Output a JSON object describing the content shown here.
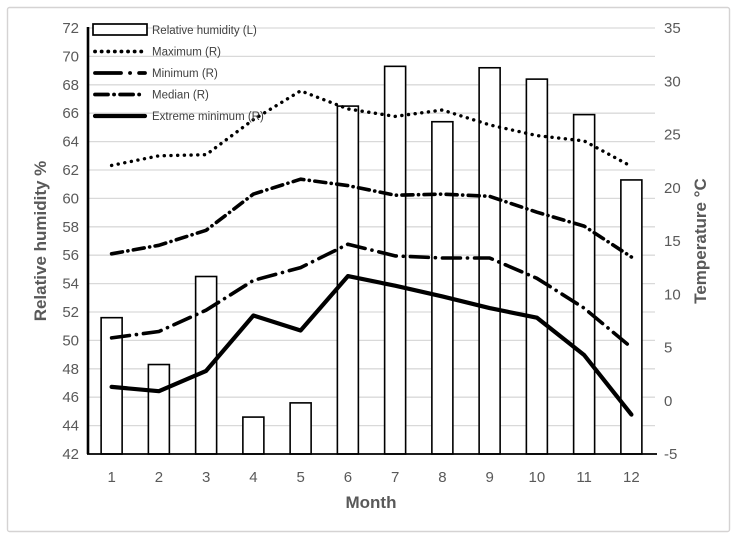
{
  "chart_data": {
    "type": "combo-bar-line",
    "title": "",
    "xlabel": "Month",
    "ylabel_left": "Relative humidity %",
    "ylabel_right": "Temperature °C",
    "categories": [
      "1",
      "2",
      "3",
      "4",
      "5",
      "6",
      "7",
      "8",
      "9",
      "10",
      "11",
      "12"
    ],
    "left_axis": {
      "min": 42,
      "max": 72,
      "step": 2,
      "ticks": [
        42,
        44,
        46,
        48,
        50,
        52,
        54,
        56,
        58,
        60,
        62,
        64,
        66,
        68,
        70,
        72
      ]
    },
    "right_axis": {
      "min": -5,
      "max": 35,
      "step": 5,
      "ticks": [
        -5,
        0,
        5,
        10,
        15,
        20,
        25,
        30,
        35
      ]
    },
    "grid": "horizontal",
    "legend_position": "top-left-inside",
    "series": [
      {
        "name": "Relative humidity (L)",
        "type": "bar",
        "axis": "left",
        "style": "bar-outline",
        "values": [
          51.6,
          48.3,
          54.5,
          44.6,
          45.6,
          66.5,
          69.3,
          65.4,
          69.2,
          68.4,
          65.9,
          61.3
        ]
      },
      {
        "name": "Maximum (R)",
        "type": "line",
        "axis": "right",
        "style": "dotted",
        "values": [
          22.1,
          23.0,
          23.1,
          26.4,
          29.1,
          27.4,
          26.7,
          27.3,
          25.9,
          24.9,
          24.4,
          22.0
        ]
      },
      {
        "name": "Minimum (R)",
        "type": "line",
        "axis": "right",
        "style": "long-dash-dot",
        "values": [
          5.9,
          6.5,
          8.5,
          11.3,
          12.5,
          14.7,
          13.6,
          13.4,
          13.4,
          11.5,
          8.7,
          5.0
        ]
      },
      {
        "name": "Median (R)",
        "type": "line",
        "axis": "right",
        "style": "dash-dot",
        "values": [
          13.8,
          14.6,
          16.0,
          19.4,
          20.8,
          20.2,
          19.3,
          19.4,
          19.2,
          17.7,
          16.4,
          13.5
        ]
      },
      {
        "name": "Extreme minimum  (R)",
        "type": "line",
        "axis": "right",
        "style": "solid",
        "values": [
          1.3,
          0.9,
          2.8,
          8.0,
          6.6,
          11.7,
          10.8,
          9.8,
          8.7,
          7.8,
          4.3,
          -1.3
        ]
      }
    ]
  },
  "colors": {
    "series_black": "#000000",
    "grid": "#d9d9d9",
    "axis_line": "#000000",
    "tick_text": "#595959",
    "axis_title_text": "#595959",
    "legend_text": "#3f3f3f",
    "frame_border": "#d5d3d3",
    "background": "#ffffff",
    "bar_fill": "#ffffff"
  }
}
